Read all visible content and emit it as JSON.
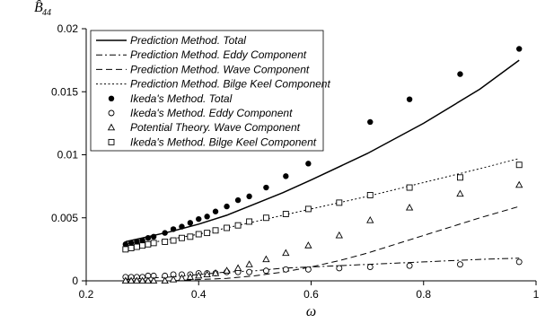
{
  "chart_data": {
    "type": "scatter",
    "xlabel": "ω",
    "ylabel": "B̂",
    "ylabel_sub": "44",
    "xlim": [
      0.2,
      1.0
    ],
    "ylim": [
      0,
      0.02
    ],
    "xticks": [
      "0.2",
      "0.4",
      "0.6",
      "0.8",
      "1"
    ],
    "yticks": [
      "0",
      "0.005",
      "0.01",
      "0.015",
      "0.02"
    ],
    "legend_position": "top-left",
    "grid": false,
    "series": [
      {
        "name": "Prediction Method. Total",
        "kind": "line",
        "dash": "solid",
        "x": [
          0.27,
          0.3,
          0.35,
          0.4,
          0.45,
          0.5,
          0.55,
          0.6,
          0.7,
          0.8,
          0.9,
          0.97
        ],
        "y": [
          0.0031,
          0.0034,
          0.0039,
          0.0045,
          0.0052,
          0.0061,
          0.007,
          0.008,
          0.0101,
          0.0125,
          0.0152,
          0.0175
        ]
      },
      {
        "name": "Prediction Method. Eddy Component",
        "kind": "line",
        "dash": "dashdot",
        "x": [
          0.27,
          0.3,
          0.35,
          0.4,
          0.45,
          0.5,
          0.55,
          0.6,
          0.7,
          0.8,
          0.9,
          0.97
        ],
        "y": [
          0.0001,
          0.0002,
          0.0003,
          0.0005,
          0.0007,
          0.0008,
          0.001,
          0.0011,
          0.0013,
          0.0015,
          0.0017,
          0.0018
        ]
      },
      {
        "name": "Prediction Method. Wave Component",
        "kind": "line",
        "dash": "dash",
        "x": [
          0.27,
          0.35,
          0.4,
          0.45,
          0.5,
          0.55,
          0.6,
          0.65,
          0.7,
          0.8,
          0.9,
          0.97
        ],
        "y": [
          0.0,
          0.0,
          0.0001,
          0.0002,
          0.0004,
          0.0007,
          0.0011,
          0.0016,
          0.0022,
          0.0036,
          0.005,
          0.0059
        ]
      },
      {
        "name": "Prediction Method. Bilge Keel Component",
        "kind": "line",
        "dash": "dot",
        "x": [
          0.27,
          0.3,
          0.35,
          0.4,
          0.45,
          0.5,
          0.55,
          0.6,
          0.7,
          0.8,
          0.9,
          0.97
        ],
        "y": [
          0.0027,
          0.0029,
          0.0033,
          0.0037,
          0.0042,
          0.0047,
          0.0052,
          0.0057,
          0.0067,
          0.0078,
          0.0089,
          0.0097
        ]
      },
      {
        "name": "Ikeda's Method. Total",
        "kind": "marker",
        "marker": "filled-circle",
        "x": [
          0.27,
          0.28,
          0.29,
          0.3,
          0.31,
          0.32,
          0.34,
          0.355,
          0.37,
          0.385,
          0.4,
          0.415,
          0.43,
          0.45,
          0.47,
          0.49,
          0.52,
          0.555,
          0.595,
          0.705,
          0.775,
          0.865,
          0.97
        ],
        "y": [
          0.0029,
          0.003,
          0.0031,
          0.0032,
          0.0034,
          0.0035,
          0.0038,
          0.0041,
          0.0043,
          0.0046,
          0.0049,
          0.0051,
          0.0055,
          0.0059,
          0.0064,
          0.0067,
          0.0074,
          0.0083,
          0.0093,
          0.0126,
          0.0144,
          0.0164,
          0.0184
        ]
      },
      {
        "name": "Ikeda's Method. Eddy Component",
        "kind": "marker",
        "marker": "open-circle",
        "x": [
          0.27,
          0.28,
          0.29,
          0.3,
          0.31,
          0.32,
          0.34,
          0.355,
          0.37,
          0.385,
          0.4,
          0.415,
          0.43,
          0.45,
          0.47,
          0.49,
          0.52,
          0.555,
          0.595,
          0.65,
          0.705,
          0.775,
          0.865,
          0.97
        ],
        "y": [
          0.0003,
          0.0003,
          0.0003,
          0.0003,
          0.0004,
          0.0004,
          0.0004,
          0.0005,
          0.0005,
          0.0005,
          0.0006,
          0.0006,
          0.0006,
          0.0007,
          0.0007,
          0.0007,
          0.0008,
          0.0009,
          0.0009,
          0.001,
          0.0011,
          0.0012,
          0.0013,
          0.0015
        ]
      },
      {
        "name": "Potential Theory. Wave Component",
        "kind": "marker",
        "marker": "open-triangle",
        "x": [
          0.27,
          0.28,
          0.29,
          0.3,
          0.31,
          0.32,
          0.34,
          0.355,
          0.37,
          0.385,
          0.4,
          0.415,
          0.43,
          0.45,
          0.47,
          0.49,
          0.52,
          0.555,
          0.595,
          0.65,
          0.705,
          0.775,
          0.865,
          0.97
        ],
        "y": [
          0.0,
          0.0,
          0.0,
          0.0,
          0.0,
          0.0,
          0.0,
          0.0001,
          0.0002,
          0.0003,
          0.0004,
          0.0005,
          0.0006,
          0.0008,
          0.001,
          0.0013,
          0.0017,
          0.0022,
          0.0028,
          0.0036,
          0.0048,
          0.0058,
          0.0069,
          0.0076
        ]
      },
      {
        "name": "Ikeda's Method. Bilge Keel Component",
        "kind": "marker",
        "marker": "open-square",
        "x": [
          0.27,
          0.28,
          0.29,
          0.3,
          0.31,
          0.32,
          0.34,
          0.355,
          0.37,
          0.385,
          0.4,
          0.415,
          0.43,
          0.45,
          0.47,
          0.49,
          0.52,
          0.555,
          0.595,
          0.65,
          0.705,
          0.775,
          0.865,
          0.97
        ],
        "y": [
          0.0025,
          0.0026,
          0.0027,
          0.0028,
          0.0029,
          0.003,
          0.0031,
          0.0032,
          0.0034,
          0.0035,
          0.0037,
          0.0038,
          0.004,
          0.0042,
          0.0044,
          0.0047,
          0.005,
          0.0053,
          0.0057,
          0.0062,
          0.0068,
          0.0074,
          0.0082,
          0.0092
        ]
      }
    ]
  }
}
